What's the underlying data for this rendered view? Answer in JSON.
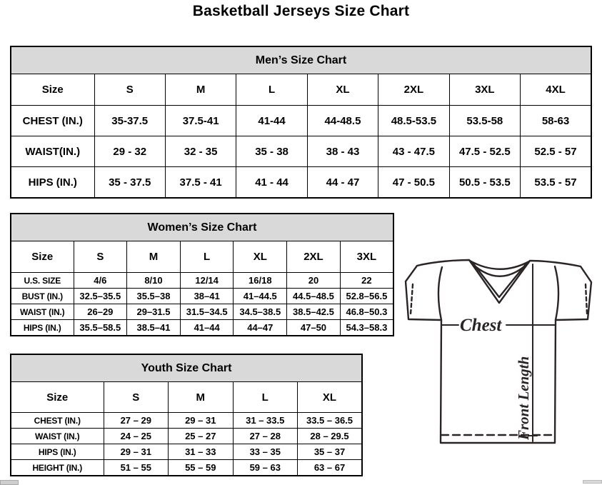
{
  "page_title": "Basketball Jerseys Size Chart",
  "tables": {
    "men": {
      "title": "Men’s Size Chart",
      "columns": [
        "Size",
        "S",
        "M",
        "L",
        "XL",
        "2XL",
        "3XL",
        "4XL"
      ],
      "rows": [
        {
          "label": "CHEST (IN.)",
          "values": [
            "35-37.5",
            "37.5-41",
            "41-44",
            "44-48.5",
            "48.5-53.5",
            "53.5-58",
            "58-63"
          ]
        },
        {
          "label": "WAIST(IN.)",
          "values": [
            "29 - 32",
            "32 - 35",
            "35 - 38",
            "38 - 43",
            "43 - 47.5",
            "47.5 - 52.5",
            "52.5 - 57"
          ]
        },
        {
          "label": "HIPS (IN.)",
          "values": [
            "35 - 37.5",
            "37.5 - 41",
            "41 - 44",
            "44 - 47",
            "47 - 50.5",
            "50.5 - 53.5",
            "53.5 - 57"
          ]
        }
      ]
    },
    "women": {
      "title": "Women’s Size Chart",
      "columns": [
        "Size",
        "S",
        "M",
        "L",
        "XL",
        "2XL",
        "3XL"
      ],
      "rows": [
        {
          "label": "U.S. SIZE",
          "values": [
            "4/6",
            "8/10",
            "12/14",
            "16/18",
            "20",
            "22"
          ]
        },
        {
          "label": "BUST (IN.)",
          "values": [
            "32.5–35.5",
            "35.5–38",
            "38–41",
            "41–44.5",
            "44.5–48.5",
            "52.8–56.5"
          ]
        },
        {
          "label": "WAIST (IN.)",
          "values": [
            "26–29",
            "29–31.5",
            "31.5–34.5",
            "34.5–38.5",
            "38.5–42.5",
            "46.8–50.3"
          ]
        },
        {
          "label": "HIPS (IN.)",
          "values": [
            "35.5–58.5",
            "38.5–41",
            "41–44",
            "44–47",
            "47–50",
            "54.3–58.3"
          ]
        }
      ]
    },
    "youth": {
      "title": "Youth Size Chart",
      "columns": [
        "Size",
        "S",
        "M",
        "L",
        "XL"
      ],
      "rows": [
        {
          "label": "CHEST (IN.)",
          "values": [
            "27 – 29",
            "29 – 31",
            "31 – 33.5",
            "33.5 – 36.5"
          ]
        },
        {
          "label": "WAIST (IN.)",
          "values": [
            "24 – 25",
            "25 – 27",
            "27 – 28",
            "28 – 29.5"
          ]
        },
        {
          "label": "HIPS (IN.)",
          "values": [
            "29 – 31",
            "31 – 33",
            "33 – 35",
            "35 – 37"
          ]
        },
        {
          "label": "HEIGHT (IN.)",
          "values": [
            "51 – 55",
            "55 – 59",
            "59 – 63",
            "63 – 67"
          ]
        }
      ]
    }
  },
  "diagram": {
    "chest_label": "Chest",
    "front_length_label": "Front Length"
  },
  "colors": {
    "table_header_bg": "#d9d9d9",
    "table_border": "#000000",
    "diagram_stroke": "#2a2425"
  }
}
